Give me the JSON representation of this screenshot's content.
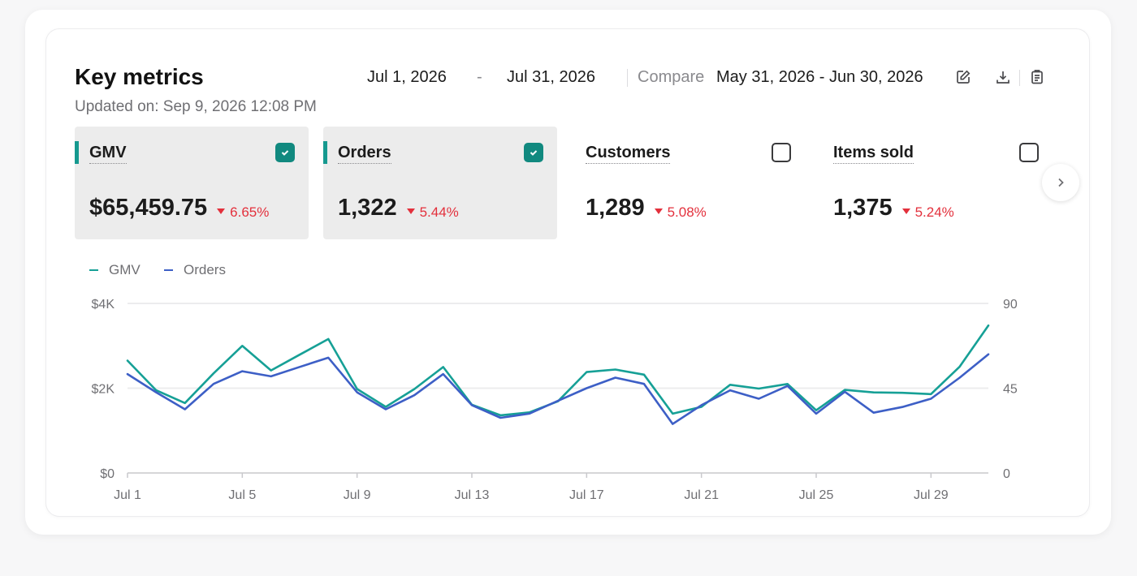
{
  "header": {
    "title": "Key metrics",
    "updated": "Updated on: Sep 9, 2026 12:08 PM",
    "date_start": "Jul 1, 2026",
    "date_separator": "-",
    "date_end": "Jul 31, 2026",
    "compare_label": "Compare",
    "compare_range": "May 31, 2026 - Jun 30, 2026",
    "tools": [
      "edit-icon",
      "download-icon",
      "clipboard-icon"
    ]
  },
  "metrics": [
    {
      "name": "GMV",
      "value": "$65,459.75",
      "delta": "6.65%",
      "direction": "down",
      "checked": true
    },
    {
      "name": "Orders",
      "value": "1,322",
      "delta": "5.44%",
      "direction": "down",
      "checked": true
    },
    {
      "name": "Customers",
      "value": "1,289",
      "delta": "5.08%",
      "direction": "down",
      "checked": false
    },
    {
      "name": "Items sold",
      "value": "1,375",
      "delta": "5.24%",
      "direction": "down",
      "checked": false
    }
  ],
  "colors": {
    "gmv": "#16a096",
    "orders": "#3d5fc6",
    "accent": "#11897f",
    "negative": "#e3303c"
  },
  "chart_data": {
    "type": "line",
    "x": [
      "Jul 1",
      "Jul 2",
      "Jul 3",
      "Jul 4",
      "Jul 5",
      "Jul 6",
      "Jul 7",
      "Jul 8",
      "Jul 9",
      "Jul 10",
      "Jul 11",
      "Jul 12",
      "Jul 13",
      "Jul 14",
      "Jul 15",
      "Jul 16",
      "Jul 17",
      "Jul 18",
      "Jul 19",
      "Jul 20",
      "Jul 21",
      "Jul 22",
      "Jul 23",
      "Jul 24",
      "Jul 25",
      "Jul 26",
      "Jul 27",
      "Jul 28",
      "Jul 29",
      "Jul 30",
      "Jul 31"
    ],
    "x_tick_labels": [
      "Jul 1",
      "Jul 5",
      "Jul 9",
      "Jul 13",
      "Jul 17",
      "Jul 21",
      "Jul 25",
      "Jul 29"
    ],
    "y_left": {
      "ticks": [
        "$0",
        "$2K",
        "$4K"
      ],
      "range": [
        0,
        4000
      ]
    },
    "y_right": {
      "ticks": [
        "0",
        "45",
        "90"
      ],
      "range": [
        0,
        90
      ]
    },
    "legend_position": "top-left",
    "grid": true,
    "series": [
      {
        "name": "GMV",
        "axis": "left",
        "values": [
          2650,
          1950,
          1650,
          2350,
          3000,
          2420,
          2790,
          3160,
          1980,
          1560,
          1980,
          2500,
          1610,
          1360,
          1430,
          1690,
          2380,
          2440,
          2320,
          1400,
          1560,
          2080,
          1990,
          2100,
          1480,
          1960,
          1900,
          1890,
          1860,
          2510,
          3480
        ]
      },
      {
        "name": "Orders",
        "axis": "right",
        "values": [
          52.5,
          42.8,
          33.8,
          47.3,
          54.0,
          51.3,
          56.3,
          61.2,
          42.8,
          33.8,
          41.3,
          52.5,
          36.0,
          29.3,
          31.5,
          38.3,
          45.0,
          50.6,
          47.3,
          26.0,
          36.0,
          43.9,
          39.4,
          46.2,
          31.5,
          43.1,
          32.0,
          35.0,
          39.4,
          50.6,
          63.0
        ]
      }
    ]
  }
}
